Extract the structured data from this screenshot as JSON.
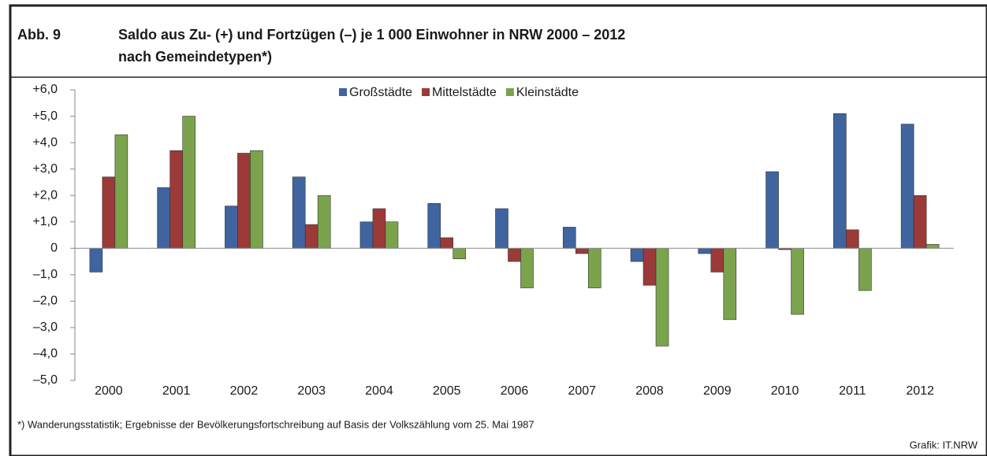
{
  "chart_data": {
    "type": "bar",
    "label": "Abb. 9",
    "title": [
      "Saldo aus Zu- (+) und Fortzügen (–) je 1 000 Einwohner in NRW 2000 – 2012",
      "nach Gemeindetypen*)"
    ],
    "categories": [
      "2000",
      "2001",
      "2002",
      "2003",
      "2004",
      "2005",
      "2006",
      "2007",
      "2008",
      "2009",
      "2010",
      "2011",
      "2012"
    ],
    "series": [
      {
        "name": "Großstädte",
        "color": "#3f64a0",
        "values": [
          -0.9,
          2.3,
          1.6,
          2.7,
          1.0,
          1.7,
          1.5,
          0.8,
          -0.5,
          -0.2,
          2.9,
          5.1,
          4.7
        ]
      },
      {
        "name": "Mittelstädte",
        "color": "#9b3a38",
        "values": [
          2.7,
          3.7,
          3.6,
          0.9,
          1.5,
          0.4,
          -0.5,
          -0.2,
          -1.4,
          -0.9,
          -0.05,
          0.7,
          2.0
        ]
      },
      {
        "name": "Kleinstädte",
        "color": "#7ba34c",
        "values": [
          4.3,
          5.0,
          3.7,
          2.0,
          1.0,
          -0.4,
          -1.5,
          -1.5,
          -3.7,
          -2.7,
          -2.5,
          -1.6,
          0.15
        ]
      }
    ],
    "ylim": [
      -5,
      6
    ],
    "yticks": [
      {
        "value": 6,
        "label": "+6,0"
      },
      {
        "value": 5,
        "label": "+5,0"
      },
      {
        "value": 4,
        "label": "+4,0"
      },
      {
        "value": 3,
        "label": "+3,0"
      },
      {
        "value": 2,
        "label": "+2,0"
      },
      {
        "value": 1,
        "label": "+1,0"
      },
      0,
      {
        "value": -1,
        "label": "–1,0"
      },
      {
        "value": -2,
        "label": "–2,0"
      },
      {
        "value": -3,
        "label": "–3,0"
      },
      {
        "value": -4,
        "label": "–4,0"
      },
      {
        "value": -5,
        "label": "–5,0"
      }
    ],
    "legend": "top",
    "footnote": "*) Wanderungsstatistik; Ergebnisse der Bevölkerungsfortschreibung auf Basis der Volkszählung vom 25. Mai 1987",
    "source": "Grafik: IT.NRW"
  }
}
